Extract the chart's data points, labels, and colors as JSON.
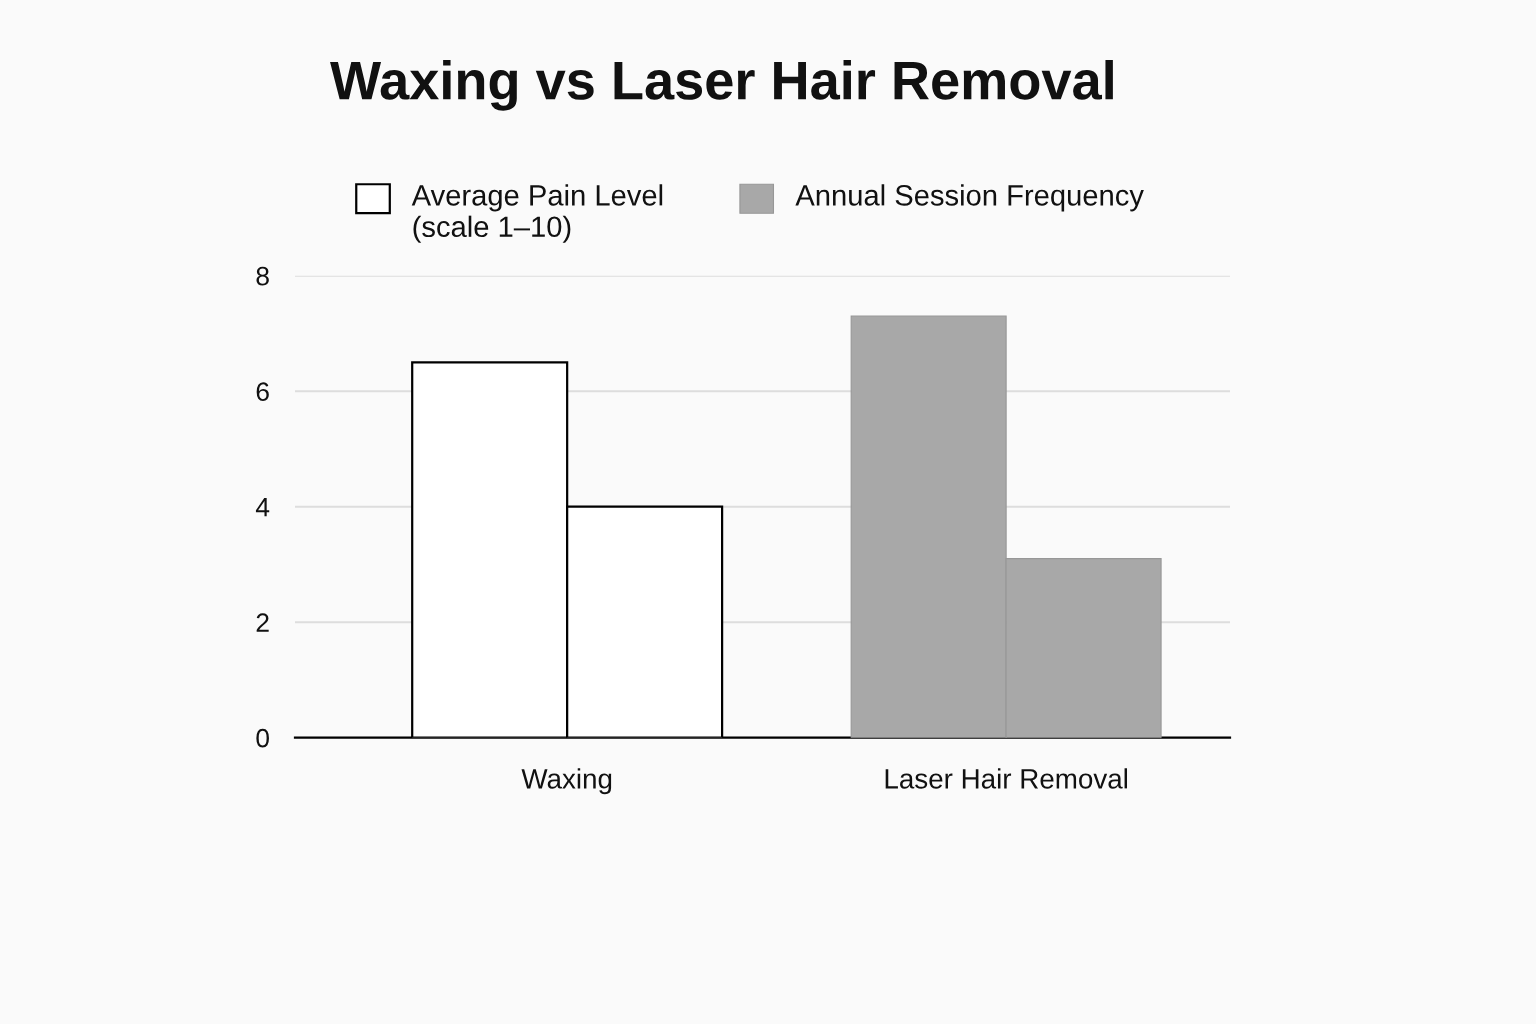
{
  "chart_data": {
    "type": "bar",
    "title": "Waxing vs Laser Hair Removal",
    "categories": [
      "Waxing",
      "Laser Hair Removal"
    ],
    "series": [
      {
        "name": "Average Pain Level\n(scale 1–10)",
        "color": "#ffffff",
        "colors": [
          "#ffffff",
          "#a8a8a8"
        ],
        "values": [
          6.5,
          7.3
        ]
      },
      {
        "name": "Annual Session Frequency",
        "color": "#a8a8a8",
        "colors": [
          "#ffffff",
          "#a8a8a8"
        ],
        "values": [
          4.0,
          3.1
        ]
      }
    ],
    "ylim": [
      0,
      8
    ],
    "yticks": [
      0,
      2,
      4,
      6,
      8
    ],
    "grid": "y",
    "legend": "top"
  }
}
